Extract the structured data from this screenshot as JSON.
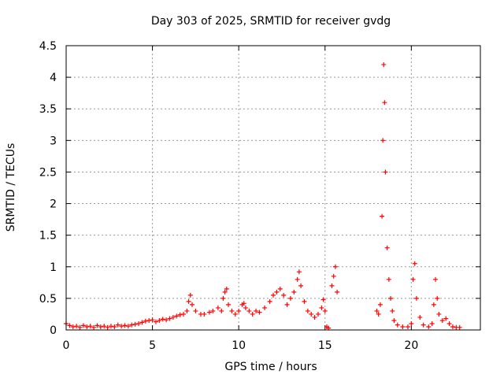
{
  "chart_data": {
    "type": "scatter",
    "title": "Day 303 of 2025, SRMTID for receiver gvdg",
    "xlabel": "GPS time / hours",
    "ylabel": "SRMTID / TECUs",
    "xlim": [
      0,
      24
    ],
    "ylim": [
      0,
      4.5
    ],
    "x_ticks": [
      0,
      5,
      10,
      15,
      20
    ],
    "x_tick_labels": [
      "0",
      "5",
      "10",
      "15",
      "20"
    ],
    "y_ticks": [
      0,
      0.5,
      1,
      1.5,
      2,
      2.5,
      3,
      3.5,
      4,
      4.5
    ],
    "y_tick_labels": [
      "0",
      "0.5",
      "1",
      "1.5",
      "2",
      "2.5",
      "3",
      "3.5",
      "4",
      "4.5"
    ],
    "grid": true,
    "marker": "+",
    "marker_color": "#ff0000",
    "series": [
      {
        "name": "gvdg",
        "points": [
          [
            0.0,
            0.1
          ],
          [
            0.2,
            0.07
          ],
          [
            0.4,
            0.05
          ],
          [
            0.6,
            0.06
          ],
          [
            0.8,
            0.04
          ],
          [
            1.0,
            0.07
          ],
          [
            1.2,
            0.05
          ],
          [
            1.4,
            0.06
          ],
          [
            1.6,
            0.04
          ],
          [
            1.8,
            0.07
          ],
          [
            2.0,
            0.05
          ],
          [
            2.2,
            0.06
          ],
          [
            2.4,
            0.04
          ],
          [
            2.6,
            0.06
          ],
          [
            2.8,
            0.05
          ],
          [
            3.0,
            0.08
          ],
          [
            3.2,
            0.06
          ],
          [
            3.4,
            0.07
          ],
          [
            3.6,
            0.06
          ],
          [
            3.8,
            0.08
          ],
          [
            4.0,
            0.09
          ],
          [
            4.2,
            0.1
          ],
          [
            4.4,
            0.12
          ],
          [
            4.6,
            0.14
          ],
          [
            4.8,
            0.15
          ],
          [
            5.0,
            0.16
          ],
          [
            5.2,
            0.13
          ],
          [
            5.4,
            0.15
          ],
          [
            5.6,
            0.17
          ],
          [
            5.8,
            0.16
          ],
          [
            6.0,
            0.18
          ],
          [
            6.2,
            0.2
          ],
          [
            6.4,
            0.22
          ],
          [
            6.6,
            0.24
          ],
          [
            6.8,
            0.25
          ],
          [
            7.0,
            0.3
          ],
          [
            7.1,
            0.45
          ],
          [
            7.2,
            0.55
          ],
          [
            7.3,
            0.4
          ],
          [
            7.5,
            0.3
          ],
          [
            7.8,
            0.25
          ],
          [
            8.0,
            0.25
          ],
          [
            8.3,
            0.28
          ],
          [
            8.5,
            0.3
          ],
          [
            8.8,
            0.35
          ],
          [
            9.0,
            0.3
          ],
          [
            9.1,
            0.5
          ],
          [
            9.2,
            0.6
          ],
          [
            9.3,
            0.65
          ],
          [
            9.4,
            0.4
          ],
          [
            9.6,
            0.3
          ],
          [
            9.8,
            0.25
          ],
          [
            10.0,
            0.3
          ],
          [
            10.2,
            0.4
          ],
          [
            10.3,
            0.42
          ],
          [
            10.4,
            0.35
          ],
          [
            10.6,
            0.3
          ],
          [
            10.8,
            0.25
          ],
          [
            11.0,
            0.3
          ],
          [
            11.2,
            0.28
          ],
          [
            11.5,
            0.35
          ],
          [
            11.8,
            0.45
          ],
          [
            12.0,
            0.55
          ],
          [
            12.2,
            0.6
          ],
          [
            12.4,
            0.65
          ],
          [
            12.6,
            0.55
          ],
          [
            12.8,
            0.4
          ],
          [
            13.0,
            0.5
          ],
          [
            13.2,
            0.6
          ],
          [
            13.4,
            0.8
          ],
          [
            13.5,
            0.92
          ],
          [
            13.6,
            0.7
          ],
          [
            13.8,
            0.45
          ],
          [
            14.0,
            0.3
          ],
          [
            14.2,
            0.25
          ],
          [
            14.4,
            0.2
          ],
          [
            14.6,
            0.25
          ],
          [
            14.8,
            0.35
          ],
          [
            14.9,
            0.48
          ],
          [
            15.0,
            0.3
          ],
          [
            15.1,
            0.05
          ],
          [
            15.2,
            0.03
          ],
          [
            15.4,
            0.7
          ],
          [
            15.5,
            0.85
          ],
          [
            15.6,
            1.0
          ],
          [
            15.7,
            0.6
          ],
          [
            18.0,
            0.3
          ],
          [
            18.1,
            0.25
          ],
          [
            18.2,
            0.4
          ],
          [
            18.3,
            1.8
          ],
          [
            18.35,
            3.0
          ],
          [
            18.4,
            4.2
          ],
          [
            18.45,
            3.6
          ],
          [
            18.5,
            2.5
          ],
          [
            18.6,
            1.3
          ],
          [
            18.7,
            0.8
          ],
          [
            18.8,
            0.5
          ],
          [
            18.9,
            0.3
          ],
          [
            19.0,
            0.15
          ],
          [
            19.2,
            0.08
          ],
          [
            19.5,
            0.05
          ],
          [
            19.8,
            0.05
          ],
          [
            20.0,
            0.1
          ],
          [
            20.1,
            0.8
          ],
          [
            20.2,
            1.05
          ],
          [
            20.3,
            0.5
          ],
          [
            20.5,
            0.2
          ],
          [
            20.7,
            0.08
          ],
          [
            21.0,
            0.05
          ],
          [
            21.2,
            0.1
          ],
          [
            21.3,
            0.4
          ],
          [
            21.4,
            0.8
          ],
          [
            21.5,
            0.5
          ],
          [
            21.6,
            0.25
          ],
          [
            21.8,
            0.15
          ],
          [
            22.0,
            0.18
          ],
          [
            22.2,
            0.1
          ],
          [
            22.4,
            0.05
          ],
          [
            22.6,
            0.04
          ],
          [
            22.8,
            0.04
          ]
        ]
      }
    ]
  }
}
